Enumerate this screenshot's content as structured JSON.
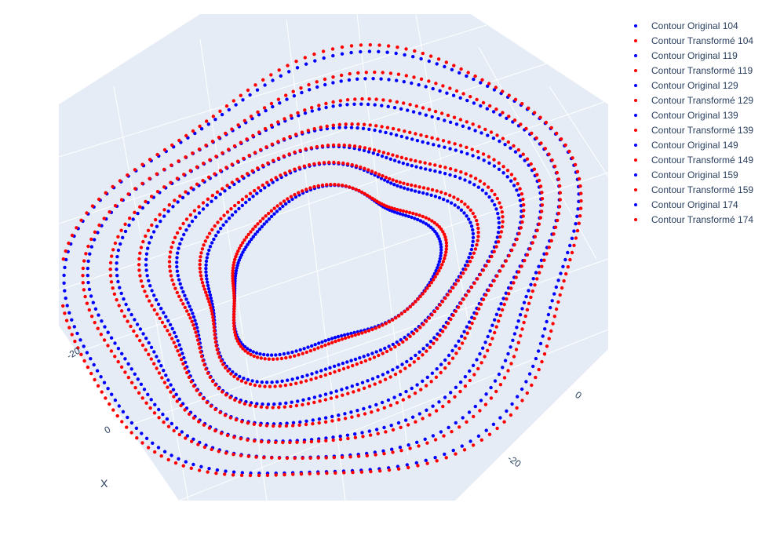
{
  "chart_data": {
    "type": "scatter",
    "scene": "3d",
    "axes": {
      "x": {
        "title": "X",
        "ticks": [
          "-20",
          "0"
        ]
      },
      "y": {
        "ticks": [
          "0",
          "-20"
        ]
      }
    },
    "colors": {
      "original": "#0000ff",
      "transformed": "#ff0000",
      "scene_bg": "#e5ecf6",
      "grid": "#ffffff"
    },
    "legend_position": "top-right",
    "series": [
      {
        "name": "Contour Original 104",
        "color": "#0000ff",
        "rx": 13,
        "ry": 9,
        "bump": 0.1
      },
      {
        "name": "Contour Transformé 104",
        "color": "#ff0000",
        "rx": 13.4,
        "ry": 9.3,
        "bump": 0.1
      },
      {
        "name": "Contour Original 119",
        "color": "#0000ff",
        "rx": 16.5,
        "ry": 12,
        "bump": 0.08
      },
      {
        "name": "Contour Transformé 119",
        "color": "#ff0000",
        "rx": 17,
        "ry": 12.4,
        "bump": 0.08
      },
      {
        "name": "Contour Original 129",
        "color": "#0000ff",
        "rx": 19.5,
        "ry": 14.5,
        "bump": 0.07
      },
      {
        "name": "Contour Transformé 129",
        "color": "#ff0000",
        "rx": 20,
        "ry": 14.9,
        "bump": 0.07
      },
      {
        "name": "Contour Original 139",
        "color": "#0000ff",
        "rx": 22.5,
        "ry": 17,
        "bump": 0.06
      },
      {
        "name": "Contour Transformé 139",
        "color": "#ff0000",
        "rx": 23,
        "ry": 17.4,
        "bump": 0.06
      },
      {
        "name": "Contour Original 149",
        "color": "#0000ff",
        "rx": 25.5,
        "ry": 19.5,
        "bump": 0.05
      },
      {
        "name": "Contour Transformé 149",
        "color": "#ff0000",
        "rx": 26,
        "ry": 19.9,
        "bump": 0.05
      },
      {
        "name": "Contour Original 159",
        "color": "#0000ff",
        "rx": 28.5,
        "ry": 22,
        "bump": 0.05
      },
      {
        "name": "Contour Transformé 159",
        "color": "#ff0000",
        "rx": 29,
        "ry": 22.4,
        "bump": 0.05
      },
      {
        "name": "Contour Original 174",
        "color": "#0000ff",
        "rx": 31.5,
        "ry": 24.5,
        "bump": 0.04
      },
      {
        "name": "Contour Transformé 174",
        "color": "#ff0000",
        "rx": 32,
        "ry": 25,
        "bump": 0.04
      }
    ]
  }
}
